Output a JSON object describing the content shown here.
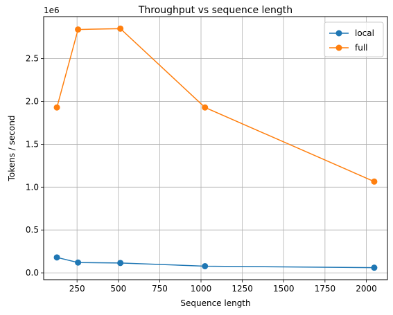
{
  "chart_data": {
    "type": "line",
    "title": "Throughput vs sequence length",
    "xlabel": "Sequence length",
    "ylabel": "Tokens / second",
    "y_offset_label": "1e6",
    "xlim": [
      48,
      2128
    ],
    "ylim": [
      -0.08,
      2.99
    ],
    "y_display_scale": 1000000,
    "x_ticks": [
      250,
      500,
      750,
      1000,
      1250,
      1500,
      1750,
      2000
    ],
    "x_tick_labels": [
      "250",
      "500",
      "750",
      "1000",
      "1250",
      "1500",
      "1750",
      "2000"
    ],
    "y_ticks": [
      0.0,
      0.5,
      1.0,
      1.5,
      2.0,
      2.5
    ],
    "y_tick_labels": [
      "0.0",
      "0.5",
      "1.0",
      "1.5",
      "2.0",
      "2.5"
    ],
    "grid": true,
    "legend_position": "top-right",
    "x": [
      128,
      256,
      512,
      1024,
      2048
    ],
    "series": [
      {
        "name": "local",
        "color": "#1f77b4",
        "values": [
          180000,
          120000,
          115000,
          78000,
          60000
        ]
      },
      {
        "name": "full",
        "color": "#ff7f0e",
        "values": [
          1930000,
          2840000,
          2850000,
          1930000,
          1065000
        ]
      }
    ]
  }
}
